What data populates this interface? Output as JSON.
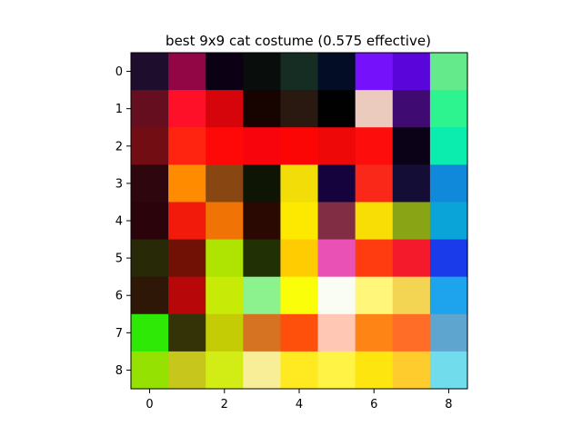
{
  "chart_data": {
    "type": "heatmap",
    "title": "best 9x9 cat costume (0.575 effective)",
    "xlabel": "",
    "ylabel": "",
    "x_ticks": [
      "0",
      "2",
      "4",
      "6",
      "8"
    ],
    "y_ticks": [
      "0",
      "1",
      "2",
      "3",
      "4",
      "5",
      "6",
      "7",
      "8"
    ],
    "xlim": [
      -0.5,
      8.5
    ],
    "ylim": [
      8.5,
      -0.5
    ],
    "grid": false,
    "cells": [
      [
        "#1f0d2e",
        "#930645",
        "#0b0014",
        "#090d0b",
        "#152d22",
        "#030d26",
        "#7512fb",
        "#5a05d9",
        "#64ea8a"
      ],
      [
        "#650e1f",
        "#ff1029",
        "#d5050b",
        "#170401",
        "#2a1910",
        "#020101",
        "#ebcbbd",
        "#3f0b72",
        "#2ef48f"
      ],
      [
        "#720d13",
        "#ff2410",
        "#ff0808",
        "#f7040c",
        "#fc0505",
        "#ee0808",
        "#fd0d0b",
        "#0b0217",
        "#0bedaf"
      ],
      [
        "#2e070e",
        "#fe8b00",
        "#884612",
        "#0f1505",
        "#f2dd09",
        "#14033d",
        "#f92819",
        "#140d36",
        "#1089db"
      ],
      [
        "#2b040b",
        "#f11a0b",
        "#f07306",
        "#2b0903",
        "#fde800",
        "#812e45",
        "#f9de06",
        "#89a515",
        "#0ba4d8"
      ],
      [
        "#272907",
        "#711106",
        "#aee302",
        "#213005",
        "#ffcc02",
        "#e952b4",
        "#ff3b10",
        "#f51a2b",
        "#193be9"
      ],
      [
        "#2f1708",
        "#b80708",
        "#c7eb06",
        "#8bf28d",
        "#fafe09",
        "#f9fdf3",
        "#fff67a",
        "#f4d553",
        "#1da4ed"
      ],
      [
        "#2ee806",
        "#343207",
        "#c4cc06",
        "#d57322",
        "#ff500b",
        "#ffc7b4",
        "#fe8416",
        "#ff6d26",
        "#5ea6d0"
      ],
      [
        "#95e102",
        "#c7c61c",
        "#d2ec15",
        "#f8ee98",
        "#ffea21",
        "#fff346",
        "#fde60f",
        "#fecc2c",
        "#70dcec"
      ]
    ]
  }
}
